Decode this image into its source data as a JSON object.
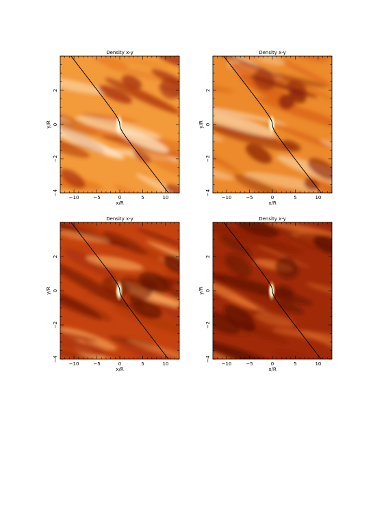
{
  "panels": [
    {
      "title": "Density  x-y",
      "xlabel": "x/R",
      "ylabel": "y/R",
      "theme": "bright",
      "colors": {
        "base": "#f39a3a",
        "light": "#fde3c2",
        "mid": "#e8761e",
        "dark": "#a8320c"
      },
      "xticks": [
        {
          "v": -10,
          "label": "−10"
        },
        {
          "v": -5,
          "label": "−5"
        },
        {
          "v": 0,
          "label": "0"
        },
        {
          "v": 5,
          "label": "5"
        },
        {
          "v": 10,
          "label": "10"
        }
      ],
      "yticks": [
        {
          "v": -4,
          "label": "−4"
        },
        {
          "v": -2,
          "label": "−2"
        },
        {
          "v": 0,
          "label": "0"
        },
        {
          "v": 2,
          "label": "2"
        }
      ],
      "xlim": [
        -13,
        13
      ],
      "ylim": [
        -4,
        4
      ]
    },
    {
      "title": "Density  x-y",
      "xlabel": "x/R",
      "ylabel": "y/R",
      "theme": "mid",
      "colors": {
        "base": "#ec8a2c",
        "light": "#fbd3a5",
        "mid": "#d85e14",
        "dark": "#8c2408"
      },
      "xticks": [
        {
          "v": -10,
          "label": "−10"
        },
        {
          "v": -5,
          "label": "−5"
        },
        {
          "v": 0,
          "label": "0"
        },
        {
          "v": 5,
          "label": "5"
        },
        {
          "v": 10,
          "label": "10"
        }
      ],
      "yticks": [
        {
          "v": -4,
          "label": "−4"
        },
        {
          "v": -2,
          "label": "−2"
        },
        {
          "v": 0,
          "label": "0"
        },
        {
          "v": 2,
          "label": "2"
        }
      ],
      "xlim": [
        -13,
        13
      ],
      "ylim": [
        -4,
        4
      ]
    },
    {
      "title": "Density  x-y",
      "xlabel": "x/R",
      "ylabel": "y/R",
      "theme": "dark",
      "colors": {
        "base": "#c4420e",
        "light": "#f6a55a",
        "mid": "#a8300a",
        "dark": "#6a1604"
      },
      "xticks": [
        {
          "v": -10,
          "label": "−10"
        },
        {
          "v": -5,
          "label": "−5"
        },
        {
          "v": 0,
          "label": "0"
        },
        {
          "v": 5,
          "label": "5"
        },
        {
          "v": 10,
          "label": "10"
        }
      ],
      "yticks": [
        {
          "v": -4,
          "label": "−4"
        },
        {
          "v": -2,
          "label": "−2"
        },
        {
          "v": 0,
          "label": "0"
        },
        {
          "v": 2,
          "label": "2"
        }
      ],
      "xlim": [
        -13,
        13
      ],
      "ylim": [
        -4,
        4
      ]
    },
    {
      "title": "Density  x-y",
      "xlabel": "x/R",
      "ylabel": "y/R",
      "theme": "darkest",
      "colors": {
        "base": "#a02a08",
        "light": "#e0702a",
        "mid": "#8a2006",
        "dark": "#5a1002"
      },
      "xticks": [
        {
          "v": -10,
          "label": "−10"
        },
        {
          "v": -5,
          "label": "−5"
        },
        {
          "v": 0,
          "label": "0"
        },
        {
          "v": 5,
          "label": "5"
        },
        {
          "v": 10,
          "label": "10"
        }
      ],
      "yticks": [
        {
          "v": -4,
          "label": "−4"
        },
        {
          "v": -2,
          "label": "−2"
        },
        {
          "v": 0,
          "label": "0"
        },
        {
          "v": 2,
          "label": "2"
        }
      ],
      "xlim": [
        -13,
        13
      ],
      "ylim": [
        -4,
        4
      ]
    }
  ]
}
